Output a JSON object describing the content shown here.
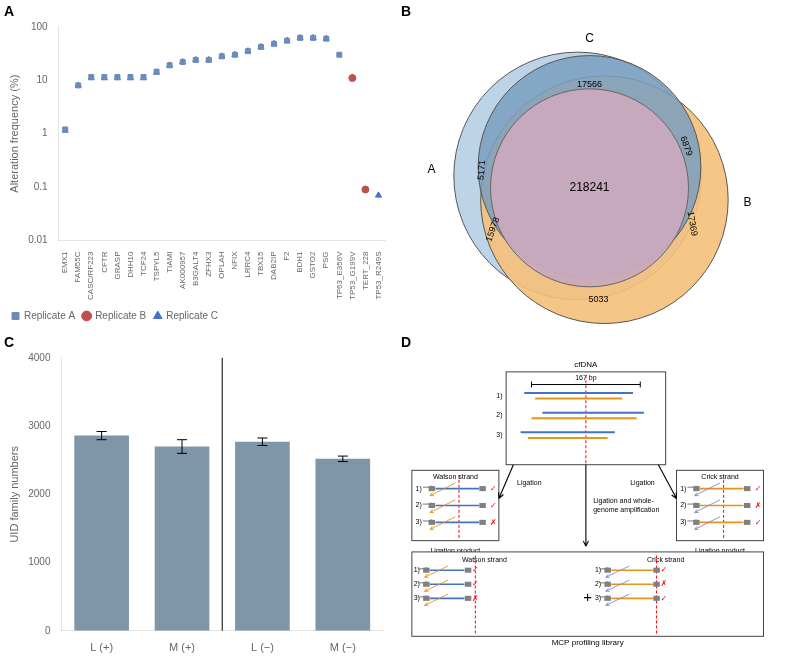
{
  "chart_data": [
    {
      "type": "scatter",
      "title": "A",
      "ylabel": "Alteration frequency (%)",
      "categories": [
        "EMX1",
        "FAM55C",
        "CASC/RF223",
        "CFTR",
        "GRASP",
        "DHH10",
        "TCF24",
        "TSPYL5",
        "TIAMI",
        "AK000957",
        "B3GALT4",
        "ZFHX3",
        "OPLAH",
        "NFIX",
        "LRRC4",
        "TBX15",
        "DAB2IP",
        "F2",
        "BDH1",
        "GSTO2",
        "PSG",
        "TP63_E356V",
        "TP53_G199V",
        "TERT_228",
        "TP53_R249S"
      ],
      "series": [
        {
          "name": "Replicate A",
          "color": "#6b8cba",
          "marker": "square",
          "values": [
            1.2,
            8.0,
            11.5,
            11.5,
            11.5,
            11.5,
            11.5,
            14.5,
            19.0,
            22.0,
            24.0,
            24.0,
            28.0,
            30.0,
            35.0,
            42.0,
            48.0,
            55.0,
            62.0,
            62.0,
            60.0,
            30.0,
            null,
            null,
            null
          ]
        },
        {
          "name": "Replicate B",
          "color": "#c0504d",
          "marker": "circle",
          "values": [
            null,
            null,
            null,
            null,
            null,
            null,
            null,
            null,
            null,
            null,
            null,
            null,
            null,
            null,
            null,
            null,
            null,
            null,
            null,
            null,
            null,
            null,
            11.0,
            0.09,
            null
          ]
        },
        {
          "name": "Replicate C",
          "color": "#4472c4",
          "marker": "triangle",
          "values": [
            1.15,
            8.0,
            11.0,
            11.0,
            11.0,
            11.0,
            11.0,
            14.0,
            19.0,
            22.0,
            24.0,
            24.0,
            28.0,
            30.0,
            35.0,
            42.0,
            48.0,
            55.0,
            62.0,
            62.0,
            60.0,
            null,
            11.0,
            null,
            0.07
          ]
        }
      ],
      "log": "y",
      "ylim": [
        0.01,
        100
      ],
      "yticks": [
        0.01,
        0.1,
        1,
        10,
        100
      ],
      "legend": "lower left",
      "grid": false
    },
    {
      "type": "venn",
      "title": "B",
      "categories": [
        "A",
        "B",
        "C"
      ],
      "colors": [
        "#bdd4e8",
        "#f5c07a",
        "#7a9fc0"
      ],
      "regions": [
        {
          "sets": [
            "A",
            "B",
            "C"
          ],
          "value": 218241,
          "color": "#c9aabc"
        },
        {
          "sets": [
            "C"
          ],
          "value": 17566
        },
        {
          "sets": [
            "A"
          ],
          "value": 5171
        },
        {
          "sets": [
            "A",
            "C"
          ],
          "value": 15978
        },
        {
          "sets": [
            "A",
            "B"
          ],
          "value": 6879
        },
        {
          "sets": [
            "B"
          ],
          "value": 17369
        },
        {
          "sets": [
            "B",
            "C"
          ],
          "value": 5033
        }
      ]
    },
    {
      "type": "bar",
      "title": "C",
      "ylabel": "UID family numbers",
      "categories": [
        "L (+)",
        "M (+)",
        "L (−)",
        "M (−)"
      ],
      "values": [
        2860,
        2700,
        2770,
        2520
      ],
      "errors": [
        60,
        100,
        55,
        40
      ],
      "color": "#7f96a8",
      "ylim": [
        0,
        4000
      ],
      "yticks": [
        0,
        1000,
        2000,
        3000,
        4000
      ],
      "grid": false
    },
    {
      "type": "diagram",
      "title": "D",
      "annotations": [
        "cfDNA",
        "167 bp",
        "1)",
        "2)",
        "3)",
        "Watson strand",
        "Crick strand",
        "Ligation product",
        "Ligation",
        "Ligation and whole-\ngenome amplification",
        "MCP profiling library",
        "+",
        "✓",
        "✗"
      ],
      "colors": [
        "#4472c4",
        "#e8931a",
        "#808080"
      ]
    }
  ]
}
